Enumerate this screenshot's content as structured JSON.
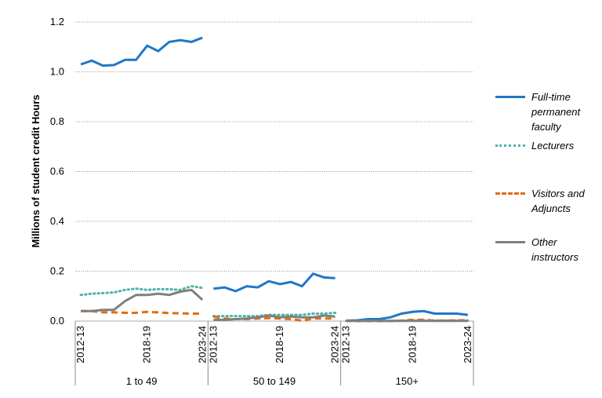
{
  "chart_data": {
    "type": "line",
    "y_label": "Millions of student credit Hours",
    "groups": [
      "1 to 49",
      "50 to 149",
      "150+"
    ],
    "categories": [
      "2012-13",
      null,
      null,
      null,
      null,
      null,
      "2018-19",
      null,
      null,
      null,
      null,
      "2023-24",
      "2012-13",
      null,
      null,
      null,
      null,
      null,
      "2018-19",
      null,
      null,
      null,
      null,
      "2023-24",
      "2012-13",
      null,
      null,
      null,
      null,
      null,
      "2018-19",
      null,
      null,
      null,
      null,
      "2023-24"
    ],
    "ylim": [
      0,
      1.2
    ],
    "yticks": [
      {
        "value": 0,
        "label": "0.0"
      },
      {
        "value": 0.2,
        "label": "0.2"
      },
      {
        "value": 0.4,
        "label": "0.4"
      },
      {
        "value": 0.6,
        "label": "0.6"
      },
      {
        "value": 0.8,
        "label": "0.8"
      },
      {
        "value": 1.0,
        "label": "1.0"
      },
      {
        "value": 1.2,
        "label": "1.2"
      }
    ],
    "grid": true,
    "legend": "right",
    "series": [
      {
        "name": "Full-time permanent faculty",
        "color": "#1f77c4",
        "dash": "solid",
        "values": [
          1.03,
          1.045,
          1.025,
          1.027,
          1.048,
          1.048,
          1.105,
          1.083,
          1.12,
          1.127,
          1.12,
          1.137,
          0.13,
          0.135,
          0.12,
          0.14,
          0.135,
          0.16,
          0.148,
          0.157,
          0.14,
          0.19,
          0.175,
          0.172,
          0.002,
          0.003,
          0.008,
          0.008,
          0.015,
          0.03,
          0.037,
          0.04,
          0.03,
          0.03,
          0.03,
          0.025
        ]
      },
      {
        "name": "Lecturers",
        "color": "#4bb5a8",
        "dash": "dotted",
        "values": [
          0.105,
          0.11,
          0.112,
          0.115,
          0.125,
          0.13,
          0.125,
          0.128,
          0.128,
          0.125,
          0.14,
          0.133,
          0.02,
          0.02,
          0.02,
          0.02,
          0.02,
          0.025,
          0.025,
          0.025,
          0.025,
          0.03,
          0.03,
          0.033,
          0.001,
          0.001,
          0.001,
          0.001,
          0.001,
          0.002,
          0.002,
          0.002,
          0.002,
          0.002,
          0.002,
          0.002
        ]
      },
      {
        "name": "Visitors and Adjuncts",
        "color": "#e46c0a",
        "dash": "dashed",
        "values": [
          0.04,
          0.04,
          0.035,
          0.035,
          0.033,
          0.033,
          0.037,
          0.035,
          0.032,
          0.031,
          0.03,
          0.03,
          0.018,
          0.01,
          0.008,
          0.008,
          0.01,
          0.012,
          0.01,
          0.008,
          0.002,
          0.01,
          0.01,
          0.01,
          0.001,
          0,
          0,
          0,
          0,
          0.002,
          0.005,
          0.005,
          0.002,
          0.002,
          0.003,
          0.003
        ]
      },
      {
        "name": "Other instructors",
        "color": "#7f7f7f",
        "dash": "solid",
        "values": [
          0.04,
          0.04,
          0.045,
          0.045,
          0.08,
          0.105,
          0.105,
          0.11,
          0.105,
          0.118,
          0.125,
          0.085,
          0.005,
          0.005,
          0.008,
          0.01,
          0.015,
          0.022,
          0.015,
          0.018,
          0.015,
          0.015,
          0.022,
          0.018,
          0.001,
          0.001,
          0.001,
          0.001,
          0.001,
          0.001,
          0.001,
          0.001,
          0.001,
          0.001,
          0.001,
          0.001
        ]
      }
    ]
  }
}
